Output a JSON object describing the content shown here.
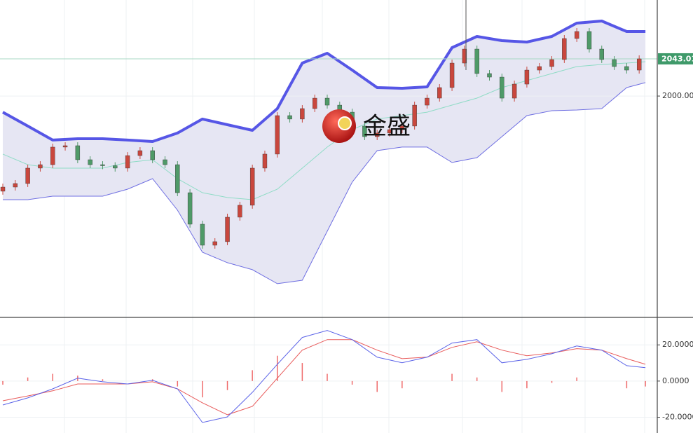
{
  "chart_data": [
    {
      "type": "candlestick",
      "watermark": "金盛",
      "x": [
        0,
        2,
        4,
        6,
        8,
        10,
        12,
        14,
        16,
        18,
        20,
        22,
        24,
        26,
        28,
        30,
        32,
        34,
        36,
        38,
        40,
        42,
        44,
        46,
        48,
        50,
        52,
        54,
        56,
        58,
        60,
        62,
        64,
        66,
        68,
        70,
        72,
        74,
        76,
        78,
        80,
        82,
        84,
        86,
        88,
        90,
        92,
        94,
        96,
        98,
        100,
        102
      ],
      "open": [
        1890.0,
        1894.8,
        1898.9,
        1916.7,
        1920.7,
        1941.0,
        1942.6,
        1926.4,
        1920.7,
        1919.5,
        1916.7,
        1931.2,
        1936.9,
        1926.4,
        1920.7,
        1888.3,
        1851.9,
        1827.6,
        1831.7,
        1860.0,
        1873.8,
        1916.7,
        1932.9,
        1977.4,
        1973.4,
        1985.5,
        1997.6,
        1989.5,
        1981.4,
        1965.3,
        1953.1,
        1957.2,
        1961.2,
        1965.3,
        1989.5,
        1997.6,
        2009.8,
        2038.1,
        2054.3,
        2026.0,
        2021.9,
        1997.6,
        2013.8,
        2030.0,
        2034.1,
        2042.2,
        2066.5,
        2074.6,
        2054.3,
        2042.2,
        2034.1,
        2030.0
      ],
      "high": [
        1898.8,
        1902.9,
        1920.7,
        1924.7,
        1945.0,
        1946.6,
        1946.6,
        1930.4,
        1924.7,
        1923.5,
        1935.2,
        1940.9,
        1940.9,
        1930.4,
        1924.7,
        1892.3,
        1855.9,
        1835.7,
        1864.0,
        1877.8,
        1920.7,
        1936.9,
        1981.4,
        1981.4,
        1989.5,
        2001.6,
        2001.6,
        1993.5,
        1985.4,
        1969.3,
        1961.2,
        1965.2,
        1969.3,
        1993.5,
        2001.6,
        2013.8,
        2042.1,
        2058.3,
        2058.3,
        2030.0,
        2025.9,
        2017.8,
        2034.0,
        2038.1,
        2046.2,
        2070.5,
        2078.6,
        2078.6,
        2058.3,
        2046.2,
        2038.1,
        2047.0
      ],
      "low": [
        1886.0,
        1890.8,
        1894.9,
        1912.7,
        1916.7,
        1937.0,
        1922.4,
        1916.7,
        1915.5,
        1912.7,
        1912.7,
        1927.2,
        1922.4,
        1916.7,
        1884.3,
        1847.9,
        1823.6,
        1823.6,
        1827.7,
        1856.0,
        1869.8,
        1912.7,
        1928.9,
        1969.4,
        1969.4,
        1981.5,
        1985.5,
        1977.4,
        1961.3,
        1949.1,
        1949.1,
        1953.2,
        1957.2,
        1961.3,
        1985.5,
        1993.6,
        2005.8,
        2034.1,
        2022.0,
        2017.9,
        1993.6,
        1993.6,
        2009.8,
        2026.0,
        2030.1,
        2038.2,
        2062.5,
        2050.3,
        2038.2,
        2030.1,
        2026.0,
        2026.0
      ],
      "close": [
        1894.8,
        1898.9,
        1916.7,
        1920.7,
        1941.0,
        1942.6,
        1926.4,
        1920.7,
        1919.5,
        1916.7,
        1931.2,
        1936.9,
        1926.4,
        1920.7,
        1888.3,
        1851.9,
        1827.6,
        1831.7,
        1860.0,
        1873.8,
        1916.7,
        1932.9,
        1977.4,
        1973.4,
        1985.5,
        1997.6,
        1989.5,
        1981.4,
        1965.3,
        1953.1,
        1957.2,
        1961.2,
        1965.3,
        1989.5,
        1997.6,
        2009.8,
        2038.1,
        2054.3,
        2026.0,
        2021.9,
        1997.6,
        2013.8,
        2030.0,
        2034.1,
        2042.2,
        2066.5,
        2074.6,
        2054.3,
        2042.2,
        2034.1,
        2030.0,
        2043.01
      ],
      "up_color": "#c9473d",
      "down_color": "#4f9a68",
      "bands": {
        "x": [
          0,
          4,
          8,
          12,
          16,
          20,
          24,
          28,
          32,
          36,
          40,
          44,
          48,
          52,
          56,
          60,
          64,
          68,
          72,
          76,
          80,
          84,
          88,
          92,
          96,
          100,
          103
        ],
        "upper": [
          1981.4,
          1965.3,
          1949.1,
          1950.7,
          1950.7,
          1949.1,
          1947.4,
          1957.2,
          1973.4,
          1966.9,
          1960.4,
          1985.5,
          2038.1,
          2049.5,
          2030.0,
          2009.8,
          2009.0,
          2010.6,
          2055.9,
          2068.9,
          2064.0,
          2062.4,
          2068.9,
          2084.3,
          2086.7,
          2074.6,
          2074.6
        ],
        "middle": [
          1932.9,
          1920.7,
          1916.7,
          1916.7,
          1916.7,
          1923.2,
          1926.4,
          1904.5,
          1888.3,
          1882.7,
          1880.2,
          1892.4,
          1916.7,
          1941.0,
          1961.2,
          1973.4,
          1977.4,
          1981.4,
          1989.5,
          1997.6,
          2009.8,
          2017.9,
          2026.0,
          2034.1,
          2036.5,
          2038.1,
          2039.7
        ],
        "lower": [
          1880.2,
          1880.2,
          1884.3,
          1884.3,
          1884.3,
          1892.4,
          1904.5,
          1868.1,
          1819.5,
          1807.4,
          1799.3,
          1783.1,
          1787.1,
          1843.8,
          1900.5,
          1936.9,
          1941.0,
          1941.0,
          1923.2,
          1928.8,
          1953.1,
          1977.4,
          1983.1,
          1983.9,
          1985.5,
          2009.8,
          2015.5
        ],
        "upper_color": "#5656e6",
        "middle_color": "#8fdcc6",
        "lower_color": "#6f6fe2",
        "fill": "#e6e6f3"
      },
      "last_price": 2043.01,
      "last_price_color": "#3f9a6a",
      "xlim": [
        -0.45,
        104.9
      ],
      "ylim": [
        1745,
        2111
      ],
      "yticks": [
        {
          "value": 2000,
          "label": "2000.00"
        }
      ]
    },
    {
      "type": "macd",
      "x": [
        0,
        4,
        8,
        12,
        16,
        20,
        24,
        28,
        32,
        36,
        40,
        44,
        48,
        52,
        56,
        60,
        64,
        68,
        72,
        76,
        80,
        84,
        88,
        92,
        96,
        100,
        103
      ],
      "dif": [
        -13.2,
        -9.3,
        -4.3,
        1.6,
        -0.4,
        -1.6,
        0.4,
        -4.3,
        -22.9,
        -19.8,
        -6.2,
        9.3,
        24.1,
        28.0,
        22.9,
        13.2,
        10.1,
        13.2,
        21.0,
        22.9,
        10.1,
        12.0,
        15.1,
        19.4,
        17.1,
        8.5,
        7.4
      ],
      "dea": [
        -10.9,
        -8.2,
        -5.4,
        -1.6,
        -1.6,
        -1.6,
        -0.4,
        -4.3,
        -12.0,
        -18.6,
        -14.0,
        1.6,
        17.1,
        22.9,
        22.9,
        17.1,
        12.4,
        13.2,
        18.6,
        21.7,
        17.1,
        14.0,
        15.5,
        17.9,
        17.1,
        12.4,
        9.3
      ],
      "histogram": [
        -2,
        2,
        4,
        3,
        1,
        0,
        1,
        -3,
        -9,
        -5,
        6,
        14,
        10,
        4,
        -2,
        -6,
        -4,
        0,
        4,
        2,
        -6,
        -4,
        -1,
        2,
        0,
        -4,
        -3
      ],
      "dif_color": "#5b63e8",
      "dea_color": "#e85a5a",
      "histogram_color": "#ef6b6b",
      "xlim": [
        -0.45,
        104.9
      ],
      "ylim": [
        -28.7,
        34.8
      ],
      "yticks": [
        {
          "value": 20,
          "label": "20.0000"
        },
        {
          "value": 0,
          "label": "0.0000"
        },
        {
          "value": -20,
          "label": "-20.0000"
        }
      ]
    }
  ]
}
